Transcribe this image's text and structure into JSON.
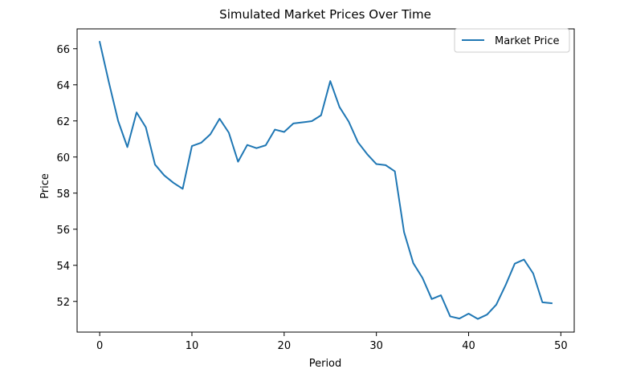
{
  "chart_data": {
    "type": "line",
    "title": "Simulated Market Prices Over Time",
    "xlabel": "Period",
    "ylabel": "Price",
    "xlim": [
      -2.45,
      51.45
    ],
    "ylim": [
      50.3,
      67.1
    ],
    "xticks": [
      0,
      10,
      20,
      30,
      40,
      50
    ],
    "yticks": [
      52,
      54,
      56,
      58,
      60,
      62,
      64,
      66
    ],
    "grid": false,
    "legend_position": "top-right",
    "series": [
      {
        "name": "Market Price",
        "color": "#1f77b4",
        "x": [
          0,
          1,
          2,
          3,
          4,
          5,
          6,
          7,
          8,
          9,
          10,
          11,
          12,
          13,
          14,
          15,
          16,
          17,
          18,
          19,
          20,
          21,
          22,
          23,
          24,
          25,
          26,
          27,
          28,
          29,
          30,
          31,
          32,
          33,
          34,
          35,
          36,
          37,
          38,
          39,
          40,
          41,
          42,
          43,
          44,
          45,
          46,
          47,
          48,
          49
        ],
        "y": [
          66.38,
          64.13,
          62.0,
          60.55,
          62.47,
          61.65,
          59.58,
          58.98,
          58.57,
          58.24,
          60.61,
          60.79,
          61.26,
          62.12,
          61.35,
          59.74,
          60.67,
          60.49,
          60.65,
          61.52,
          61.39,
          61.86,
          61.92,
          61.99,
          62.31,
          64.21,
          62.77,
          61.96,
          60.82,
          60.16,
          59.61,
          59.55,
          59.21,
          55.84,
          54.12,
          53.3,
          52.13,
          52.34,
          51.17,
          51.05,
          51.32,
          51.03,
          51.27,
          51.82,
          52.89,
          54.09,
          54.32,
          53.55,
          51.95,
          51.9
        ]
      }
    ]
  }
}
